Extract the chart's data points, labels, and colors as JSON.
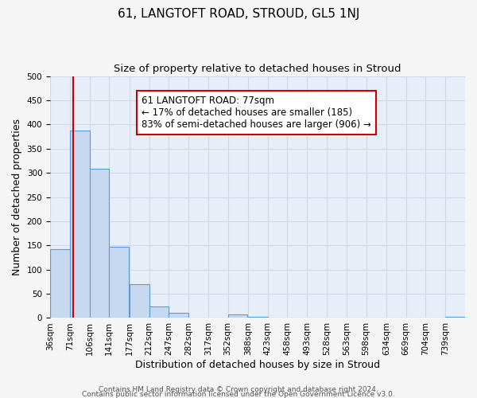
{
  "title": "61, LANGTOFT ROAD, STROUD, GL5 1NJ",
  "subtitle": "Size of property relative to detached houses in Stroud",
  "xlabel": "Distribution of detached houses by size in Stroud",
  "ylabel": "Number of detached properties",
  "bin_labels": [
    "36sqm",
    "71sqm",
    "106sqm",
    "141sqm",
    "177sqm",
    "212sqm",
    "247sqm",
    "282sqm",
    "317sqm",
    "352sqm",
    "388sqm",
    "423sqm",
    "458sqm",
    "493sqm",
    "528sqm",
    "563sqm",
    "598sqm",
    "634sqm",
    "669sqm",
    "704sqm",
    "739sqm"
  ],
  "bar_values": [
    143,
    388,
    308,
    147,
    70,
    24,
    10,
    0,
    0,
    8,
    3,
    0,
    0,
    0,
    0,
    0,
    0,
    0,
    0,
    0,
    3
  ],
  "bar_color": "#c7d9f0",
  "bar_edge_color": "#5b9bd5",
  "property_line_x": 77,
  "bin_edges": [
    36,
    71,
    106,
    141,
    177,
    212,
    247,
    282,
    317,
    352,
    388,
    423,
    458,
    493,
    528,
    563,
    598,
    634,
    669,
    704,
    739,
    774
  ],
  "annotation_title": "61 LANGTOFT ROAD: 77sqm",
  "annotation_line1": "← 17% of detached houses are smaller (185)",
  "annotation_line2": "83% of semi-detached houses are larger (906) →",
  "annotation_box_color": "#ffffff",
  "annotation_box_edge": "#cc0000",
  "red_line_color": "#cc0000",
  "ylim": [
    0,
    500
  ],
  "yticks": [
    0,
    50,
    100,
    150,
    200,
    250,
    300,
    350,
    400,
    450,
    500
  ],
  "bg_color": "#e8eef8",
  "grid_color": "#d0d8e8",
  "fig_bg_color": "#f5f5f5",
  "footer_line1": "Contains HM Land Registry data © Crown copyright and database right 2024.",
  "footer_line2": "Contains public sector information licensed under the Open Government Licence v3.0.",
  "title_fontsize": 11,
  "subtitle_fontsize": 9.5,
  "axis_label_fontsize": 9,
  "tick_fontsize": 7.5,
  "annotation_fontsize": 8.5,
  "footer_fontsize": 6.5
}
